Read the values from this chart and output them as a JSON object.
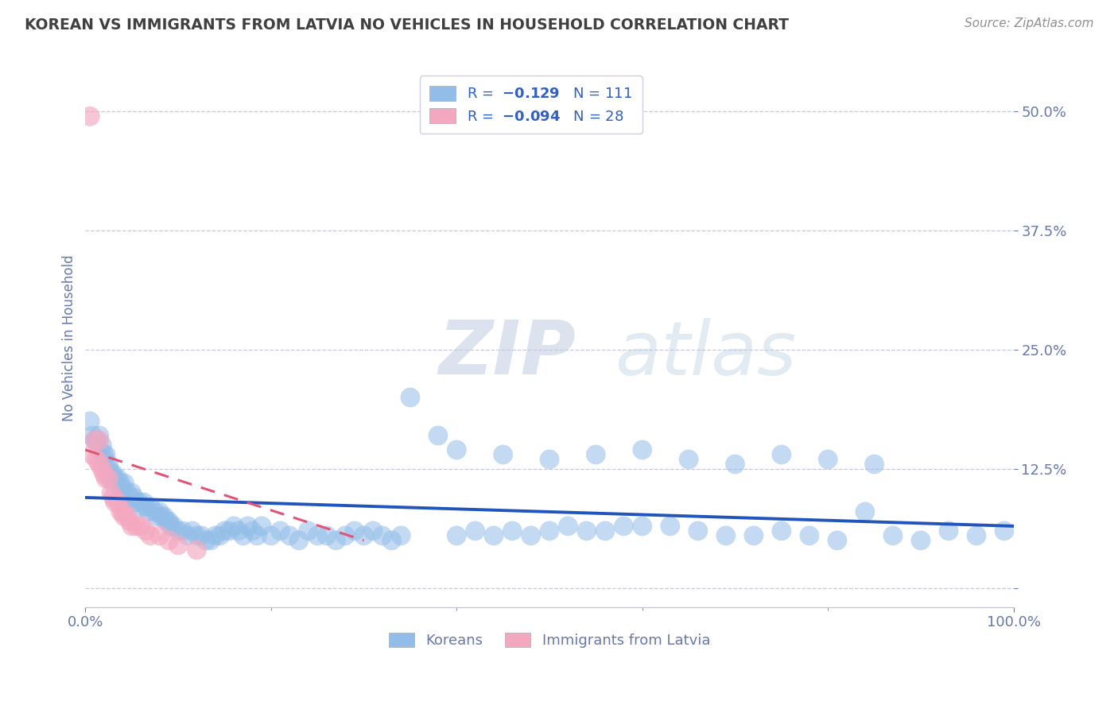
{
  "title": "KOREAN VS IMMIGRANTS FROM LATVIA NO VEHICLES IN HOUSEHOLD CORRELATION CHART",
  "source": "Source: ZipAtlas.com",
  "ylabel": "No Vehicles in Household",
  "xlim": [
    0.0,
    1.0
  ],
  "ylim": [
    -0.02,
    0.545
  ],
  "ytick_vals": [
    0.0,
    0.125,
    0.25,
    0.375,
    0.5
  ],
  "ytick_labels": [
    "",
    "12.5%",
    "25.0%",
    "37.5%",
    "50.0%"
  ],
  "xtick_vals": [
    0.0,
    1.0
  ],
  "xtick_labels": [
    "0.0%",
    "100.0%"
  ],
  "korean_color": "#92bde8",
  "latvia_color": "#f4a8c0",
  "korean_line_color": "#2255bb",
  "latvia_line_color": "#e05575",
  "watermark1": "ZIP",
  "watermark2": "atlas",
  "background_color": "#ffffff",
  "grid_color": "#c8c8d8",
  "title_color": "#404040",
  "source_color": "#909090",
  "tick_color": "#6878a8",
  "R_korean": -0.129,
  "N_korean": 111,
  "R_latvia": -0.094,
  "N_latvia": 28,
  "korean_x": [
    0.005,
    0.008,
    0.01,
    0.012,
    0.015,
    0.015,
    0.018,
    0.02,
    0.02,
    0.022,
    0.025,
    0.025,
    0.028,
    0.03,
    0.03,
    0.032,
    0.035,
    0.038,
    0.04,
    0.04,
    0.042,
    0.045,
    0.048,
    0.05,
    0.052,
    0.055,
    0.058,
    0.06,
    0.063,
    0.065,
    0.068,
    0.07,
    0.075,
    0.078,
    0.08,
    0.082,
    0.085,
    0.088,
    0.09,
    0.092,
    0.095,
    0.1,
    0.105,
    0.11,
    0.115,
    0.12,
    0.125,
    0.13,
    0.135,
    0.14,
    0.145,
    0.15,
    0.155,
    0.16,
    0.165,
    0.17,
    0.175,
    0.18,
    0.185,
    0.19,
    0.2,
    0.21,
    0.22,
    0.23,
    0.24,
    0.25,
    0.26,
    0.27,
    0.28,
    0.29,
    0.3,
    0.31,
    0.32,
    0.33,
    0.34,
    0.35,
    0.38,
    0.4,
    0.42,
    0.44,
    0.46,
    0.48,
    0.5,
    0.52,
    0.54,
    0.56,
    0.58,
    0.6,
    0.63,
    0.66,
    0.69,
    0.72,
    0.75,
    0.78,
    0.81,
    0.84,
    0.87,
    0.9,
    0.93,
    0.96,
    0.99,
    0.4,
    0.45,
    0.5,
    0.55,
    0.6,
    0.65,
    0.7,
    0.75,
    0.8,
    0.85
  ],
  "korean_y": [
    0.175,
    0.16,
    0.155,
    0.155,
    0.16,
    0.145,
    0.15,
    0.14,
    0.135,
    0.14,
    0.13,
    0.125,
    0.12,
    0.12,
    0.11,
    0.115,
    0.115,
    0.11,
    0.105,
    0.1,
    0.11,
    0.1,
    0.095,
    0.1,
    0.095,
    0.09,
    0.09,
    0.085,
    0.09,
    0.085,
    0.08,
    0.085,
    0.08,
    0.075,
    0.08,
    0.075,
    0.075,
    0.07,
    0.07,
    0.065,
    0.065,
    0.06,
    0.06,
    0.055,
    0.06,
    0.055,
    0.055,
    0.05,
    0.05,
    0.055,
    0.055,
    0.06,
    0.06,
    0.065,
    0.06,
    0.055,
    0.065,
    0.06,
    0.055,
    0.065,
    0.055,
    0.06,
    0.055,
    0.05,
    0.06,
    0.055,
    0.055,
    0.05,
    0.055,
    0.06,
    0.055,
    0.06,
    0.055,
    0.05,
    0.055,
    0.2,
    0.16,
    0.055,
    0.06,
    0.055,
    0.06,
    0.055,
    0.06,
    0.065,
    0.06,
    0.06,
    0.065,
    0.065,
    0.065,
    0.06,
    0.055,
    0.055,
    0.06,
    0.055,
    0.05,
    0.08,
    0.055,
    0.05,
    0.06,
    0.055,
    0.06,
    0.145,
    0.14,
    0.135,
    0.14,
    0.145,
    0.135,
    0.13,
    0.14,
    0.135,
    0.13
  ],
  "latvia_x": [
    0.005,
    0.007,
    0.01,
    0.012,
    0.015,
    0.015,
    0.018,
    0.02,
    0.022,
    0.025,
    0.028,
    0.03,
    0.032,
    0.035,
    0.038,
    0.04,
    0.042,
    0.045,
    0.048,
    0.05,
    0.055,
    0.06,
    0.065,
    0.07,
    0.08,
    0.09,
    0.1,
    0.12
  ],
  "latvia_y": [
    0.495,
    0.14,
    0.155,
    0.135,
    0.155,
    0.13,
    0.125,
    0.12,
    0.115,
    0.115,
    0.1,
    0.095,
    0.09,
    0.09,
    0.08,
    0.08,
    0.075,
    0.075,
    0.07,
    0.065,
    0.065,
    0.065,
    0.06,
    0.055,
    0.055,
    0.05,
    0.045,
    0.04
  ],
  "korean_line_x": [
    0.0,
    1.0
  ],
  "korean_line_y": [
    0.095,
    0.065
  ],
  "latvia_line_x": [
    0.0,
    0.3
  ],
  "latvia_line_y": [
    0.145,
    0.05
  ]
}
